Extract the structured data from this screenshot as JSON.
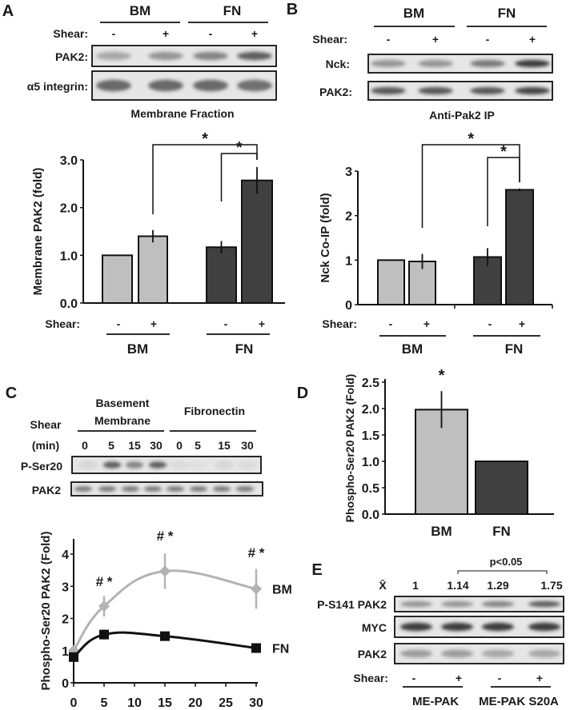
{
  "panels": {
    "A": {
      "label": "A",
      "groups": [
        "BM",
        "FN"
      ],
      "shear_label": "Shear:",
      "shear_signs": [
        "-",
        "+",
        "-",
        "+"
      ],
      "blots": [
        {
          "label": "PAK2:",
          "bands": [
            0.35,
            0.45,
            0.55,
            0.75
          ]
        },
        {
          "label": "α5 integrin:",
          "bands": [
            0.7,
            0.7,
            0.7,
            0.65
          ]
        }
      ],
      "caption": "Membrane Fraction"
    },
    "B": {
      "label": "B",
      "groups": [
        "BM",
        "FN"
      ],
      "shear_label": "Shear:",
      "shear_signs": [
        "-",
        "+",
        "-",
        "+"
      ],
      "blots": [
        {
          "label": "Nck:",
          "bands": [
            0.45,
            0.45,
            0.6,
            0.95
          ]
        },
        {
          "label": "PAK2:",
          "bands": [
            0.8,
            0.8,
            0.8,
            0.9
          ]
        }
      ],
      "caption": "Anti-Pak2 IP"
    },
    "C": {
      "label": "C",
      "group_bm": "Basement Membrane",
      "group_bm_line1": "Basement",
      "group_bm_line2": "Membrane",
      "group_fn": "Fibronectin",
      "shear_label": "Shear",
      "shear_unit": "(min)",
      "times": [
        "0",
        "5",
        "15",
        "30",
        "0",
        "5",
        "15",
        "30"
      ],
      "blots": [
        {
          "label": "P-Ser20",
          "bands": [
            0.1,
            0.75,
            0.55,
            0.75,
            0.08,
            0.05,
            0.1,
            0.08
          ]
        },
        {
          "label": "PAK2",
          "bands": [
            0.6,
            0.6,
            0.6,
            0.6,
            0.6,
            0.6,
            0.6,
            0.6
          ]
        }
      ]
    },
    "D": {
      "label": "D"
    },
    "E": {
      "label": "E",
      "mean_symbol": "X̄",
      "means": [
        "1",
        "1.14",
        "1.29",
        "1.75"
      ],
      "significance": "p<0.05",
      "blots": [
        {
          "label": "P-S141 PAK2",
          "bands": [
            0.45,
            0.45,
            0.55,
            0.75
          ]
        },
        {
          "label": "MYC",
          "bands": [
            0.95,
            0.95,
            0.95,
            0.95
          ]
        },
        {
          "label": "PAK2",
          "bands": [
            0.4,
            0.4,
            0.35,
            0.35
          ]
        }
      ],
      "shear_label": "Shear:",
      "shear_signs": [
        "-",
        "+",
        "-",
        "+"
      ],
      "groups": [
        "ME-PAK",
        "ME-PAK S20A"
      ]
    }
  },
  "colors": {
    "bm": "#bfbfbf",
    "fn": "#404040",
    "bm_text": "#8c8c8c",
    "axis": "#111111"
  },
  "chart_data": [
    {
      "panel": "A",
      "type": "bar",
      "title": "",
      "xlabel": "",
      "ylabel": "Membrane PAK2 (fold)",
      "ylim": [
        0,
        3
      ],
      "yticks": [
        "0.0",
        "1.0",
        "2.0",
        "3.0"
      ],
      "categories": [
        "BM -",
        "BM +",
        "FN -",
        "FN +"
      ],
      "values": [
        1.0,
        1.4,
        1.17,
        2.57
      ],
      "errors": [
        0,
        0.13,
        0.13,
        0.28
      ],
      "bar_groups": [
        "bm",
        "bm",
        "fn",
        "fn"
      ],
      "significance": [
        {
          "from": 1,
          "to": 3,
          "label": "*"
        },
        {
          "from": 2,
          "to": 3,
          "label": "*"
        }
      ],
      "shear_label": "Shear:",
      "shear_signs": [
        "-",
        "+",
        "-",
        "+"
      ],
      "groups": [
        "BM",
        "FN"
      ]
    },
    {
      "panel": "B",
      "type": "bar",
      "title": "",
      "xlabel": "",
      "ylabel": "Nck Co-IP (fold)",
      "ylim": [
        0,
        3
      ],
      "yticks": [
        "0",
        "1",
        "2",
        "3"
      ],
      "categories": [
        "BM -",
        "BM +",
        "FN -",
        "FN +"
      ],
      "values": [
        1.0,
        0.97,
        1.07,
        2.58
      ],
      "errors": [
        0,
        0.17,
        0.2,
        0.03
      ],
      "bar_groups": [
        "bm",
        "bm",
        "fn",
        "fn"
      ],
      "significance": [
        {
          "from": 1,
          "to": 3,
          "label": "*"
        },
        {
          "from": 2,
          "to": 3,
          "label": "*"
        }
      ],
      "shear_label": "Shear:",
      "shear_signs": [
        "-",
        "+",
        "-",
        "+"
      ],
      "groups": [
        "BM",
        "FN"
      ]
    },
    {
      "panel": "C",
      "type": "line",
      "title": "",
      "xlabel": "",
      "ylabel": "Phospho-Ser20 PAK2 (Fold)",
      "xlim": [
        0,
        30
      ],
      "ylim": [
        0,
        4
      ],
      "xticks": [
        "0",
        "5",
        "10",
        "15",
        "20",
        "25",
        "30"
      ],
      "yticks": [
        "0",
        "1",
        "2",
        "3",
        "4"
      ],
      "x": [
        0,
        5,
        15,
        30
      ],
      "series": [
        {
          "name": "BM",
          "color": "#b3b3b3",
          "values": [
            1.0,
            2.38,
            3.47,
            2.92
          ],
          "errors": [
            0.1,
            0.32,
            0.55,
            0.62
          ]
        },
        {
          "name": "FN",
          "color": "#111111",
          "values": [
            0.8,
            1.5,
            1.45,
            1.08
          ],
          "errors": [
            0.1,
            0.15,
            0.08,
            0.15
          ]
        }
      ],
      "annotations": [
        {
          "x": 5,
          "label": "# *"
        },
        {
          "x": 15,
          "label": "# *"
        },
        {
          "x": 30,
          "label": "# *"
        }
      ],
      "legend": "right"
    },
    {
      "panel": "D",
      "type": "bar",
      "title": "",
      "xlabel": "",
      "ylabel": "Phospho-Ser20 PAK2 (Fold)",
      "ylim": [
        0,
        2.5
      ],
      "yticks": [
        "0.0",
        "0.5",
        "1.0",
        "1.5",
        "2.0",
        "2.5"
      ],
      "categories": [
        "BM",
        "FN"
      ],
      "values": [
        1.98,
        1.0
      ],
      "errors": [
        0.35,
        0
      ],
      "bar_groups": [
        "bm",
        "fn"
      ],
      "annotations": [
        {
          "bar": 0,
          "label": "*"
        }
      ]
    }
  ]
}
